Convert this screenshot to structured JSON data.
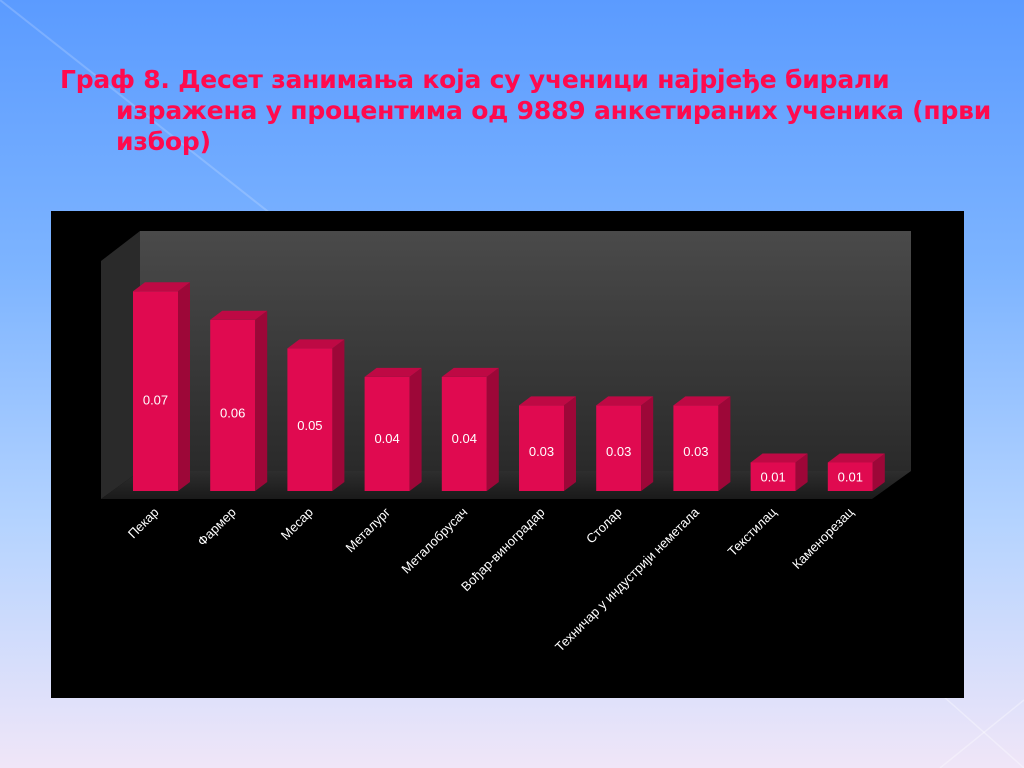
{
  "slide": {
    "title_lines": [
      "Граф 8.  Десет занимања која су ученици најрјеђе бирали",
      "изражена у процентима од 9889 анкетираних ученика (први",
      "избор)"
    ]
  },
  "colors": {
    "bar": "#e00a50",
    "title": "#ff0a4e",
    "chart_background": "#000000",
    "back_wall": "#3a3a3a",
    "text": "#ffffff"
  },
  "chart_data": {
    "type": "bar",
    "style": "3d-column",
    "categories": [
      "Пекар",
      "Фармер",
      "Месар",
      "Металург",
      "Металобрусач",
      "Вођар-виноградар",
      "Столар",
      "Техничар у индустрији неметала",
      "Текстилац",
      "Каменорезац"
    ],
    "values": [
      0.07,
      0.06,
      0.05,
      0.04,
      0.04,
      0.03,
      0.03,
      0.03,
      0.01,
      0.01
    ],
    "data_labels": [
      "0.07",
      "0.06",
      "0.05",
      "0.04",
      "0.04",
      "0.03",
      "0.03",
      "0.03",
      "0.01",
      "0.01"
    ],
    "title": "",
    "xlabel": "",
    "ylabel": "",
    "ylim": [
      0,
      0.075
    ],
    "grid": false,
    "legend": "none"
  }
}
